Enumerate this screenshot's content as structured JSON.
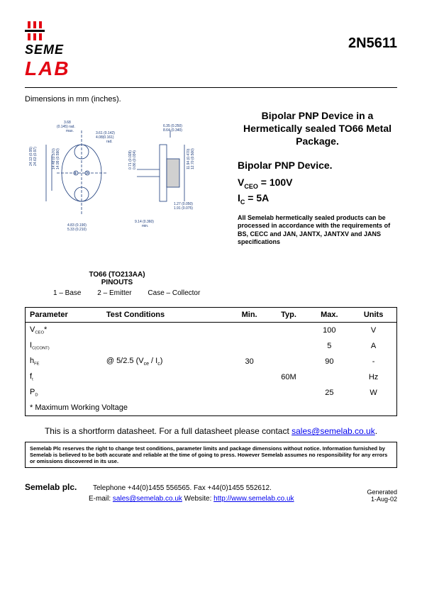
{
  "header": {
    "logo_line1": "SEME",
    "logo_line2": "LAB",
    "logo_color_top": "#000000",
    "logo_color_bottom": "#e30613",
    "part_number": "2N5611"
  },
  "dimensions_label": "Dimensions in mm (inches).",
  "drawing": {
    "line_color": "#1a3a7a",
    "dims": {
      "rad_max": "3.68\n(0.145) rad.\nmax.",
      "d361": "3.61 (0.142)",
      "d408": "4.08(0.161)\nrad.",
      "h2413": "24.13 (0.95)\n24.63 (0.97)",
      "h1448": "14.48 (0.570)\n14.99 (0.590)",
      "w483": "4.83 (0.190)\n5.33 (0.210)",
      "d635": "6.35 (0.250)\n8.64 (0.340)",
      "d071": "0.71 (0.028)\n0.86 (0.034)",
      "d1194": "11.94 (0.470)\n12.70 (0.500)",
      "d127": "1.27 (0.050)\n1.91 (0.075)",
      "d914": "9.14 (0.360)\nmin."
    }
  },
  "pinout": {
    "title_line1": "TO66 (TO213AA)",
    "title_line2": "PINOUTS",
    "pin1": "1 – Base",
    "pin2": "2 – Emitter",
    "pin3": "Case – Collector"
  },
  "info": {
    "title_main": "Bipolar PNP Device in a Hermetically sealed TO66 Metal Package.",
    "title_sub": "Bipolar PNP Device.",
    "vceo_label": "V",
    "vceo_sub": "CEO",
    "vceo_eq": " =  100V",
    "ic_label": "I",
    "ic_sub": "C",
    "ic_eq": " = 5A",
    "compliance": "All Semelab hermetically sealed products can be processed in accordance with the requirements of BS, CECC and JAN, JANTX, JANTXV and JANS specifications"
  },
  "table": {
    "headers": [
      "Parameter",
      "Test Conditions",
      "Min.",
      "Typ.",
      "Max.",
      "Units"
    ],
    "rows": [
      {
        "param": "V",
        "psub": "CEO",
        "star": "*",
        "cond": "",
        "min": "",
        "typ": "",
        "max": "100",
        "units": "V"
      },
      {
        "param": "I",
        "psub": "C(CONT)",
        "star": "",
        "cond": "",
        "min": "",
        "typ": "",
        "max": "5",
        "units": "A"
      },
      {
        "param": "h",
        "psub": "FE",
        "star": "",
        "cond_prefix": "@ 5/2.5 (V",
        "cond_sub1": "ce",
        "cond_mid": " / I",
        "cond_sub2": "c",
        "cond_suffix": ")",
        "min": "30",
        "typ": "",
        "max": "90",
        "units": "-"
      },
      {
        "param": "f",
        "psub": "t",
        "star": "",
        "cond": "",
        "min": "",
        "typ": "60M",
        "max": "",
        "units": "Hz"
      },
      {
        "param": "P",
        "psub": "D",
        "star": "",
        "cond": "",
        "min": "",
        "typ": "",
        "max": "25",
        "units": "W"
      }
    ],
    "footnote": "* Maximum Working Voltage"
  },
  "shortform": {
    "text": "This is a shortform datasheet. For a full datasheet please contact ",
    "email": "sales@semelab.co.uk",
    "suffix": "."
  },
  "disclaimer": "Semelab Plc reserves the right to change test conditions, parameter limits and package dimensions without notice. Information furnished by Semelab is believed to be both accurate and reliable at the time of going to press. However Semelab assumes no responsibility for any errors or omissions discovered in its use.",
  "footer": {
    "company": "Semelab plc.",
    "phone": "Telephone +44(0)1455 556565. Fax +44(0)1455 552612.",
    "email_label": "E-mail: ",
    "email": "sales@semelab.co.uk",
    "website_label": "    Website: ",
    "website": "http://www.semelab.co.uk",
    "generated_label": "Generated",
    "generated_date": "1-Aug-02"
  },
  "colors": {
    "link": "#0000ee",
    "red": "#e30613",
    "drawing": "#1a3a7a",
    "text": "#000000",
    "bg": "#ffffff"
  }
}
